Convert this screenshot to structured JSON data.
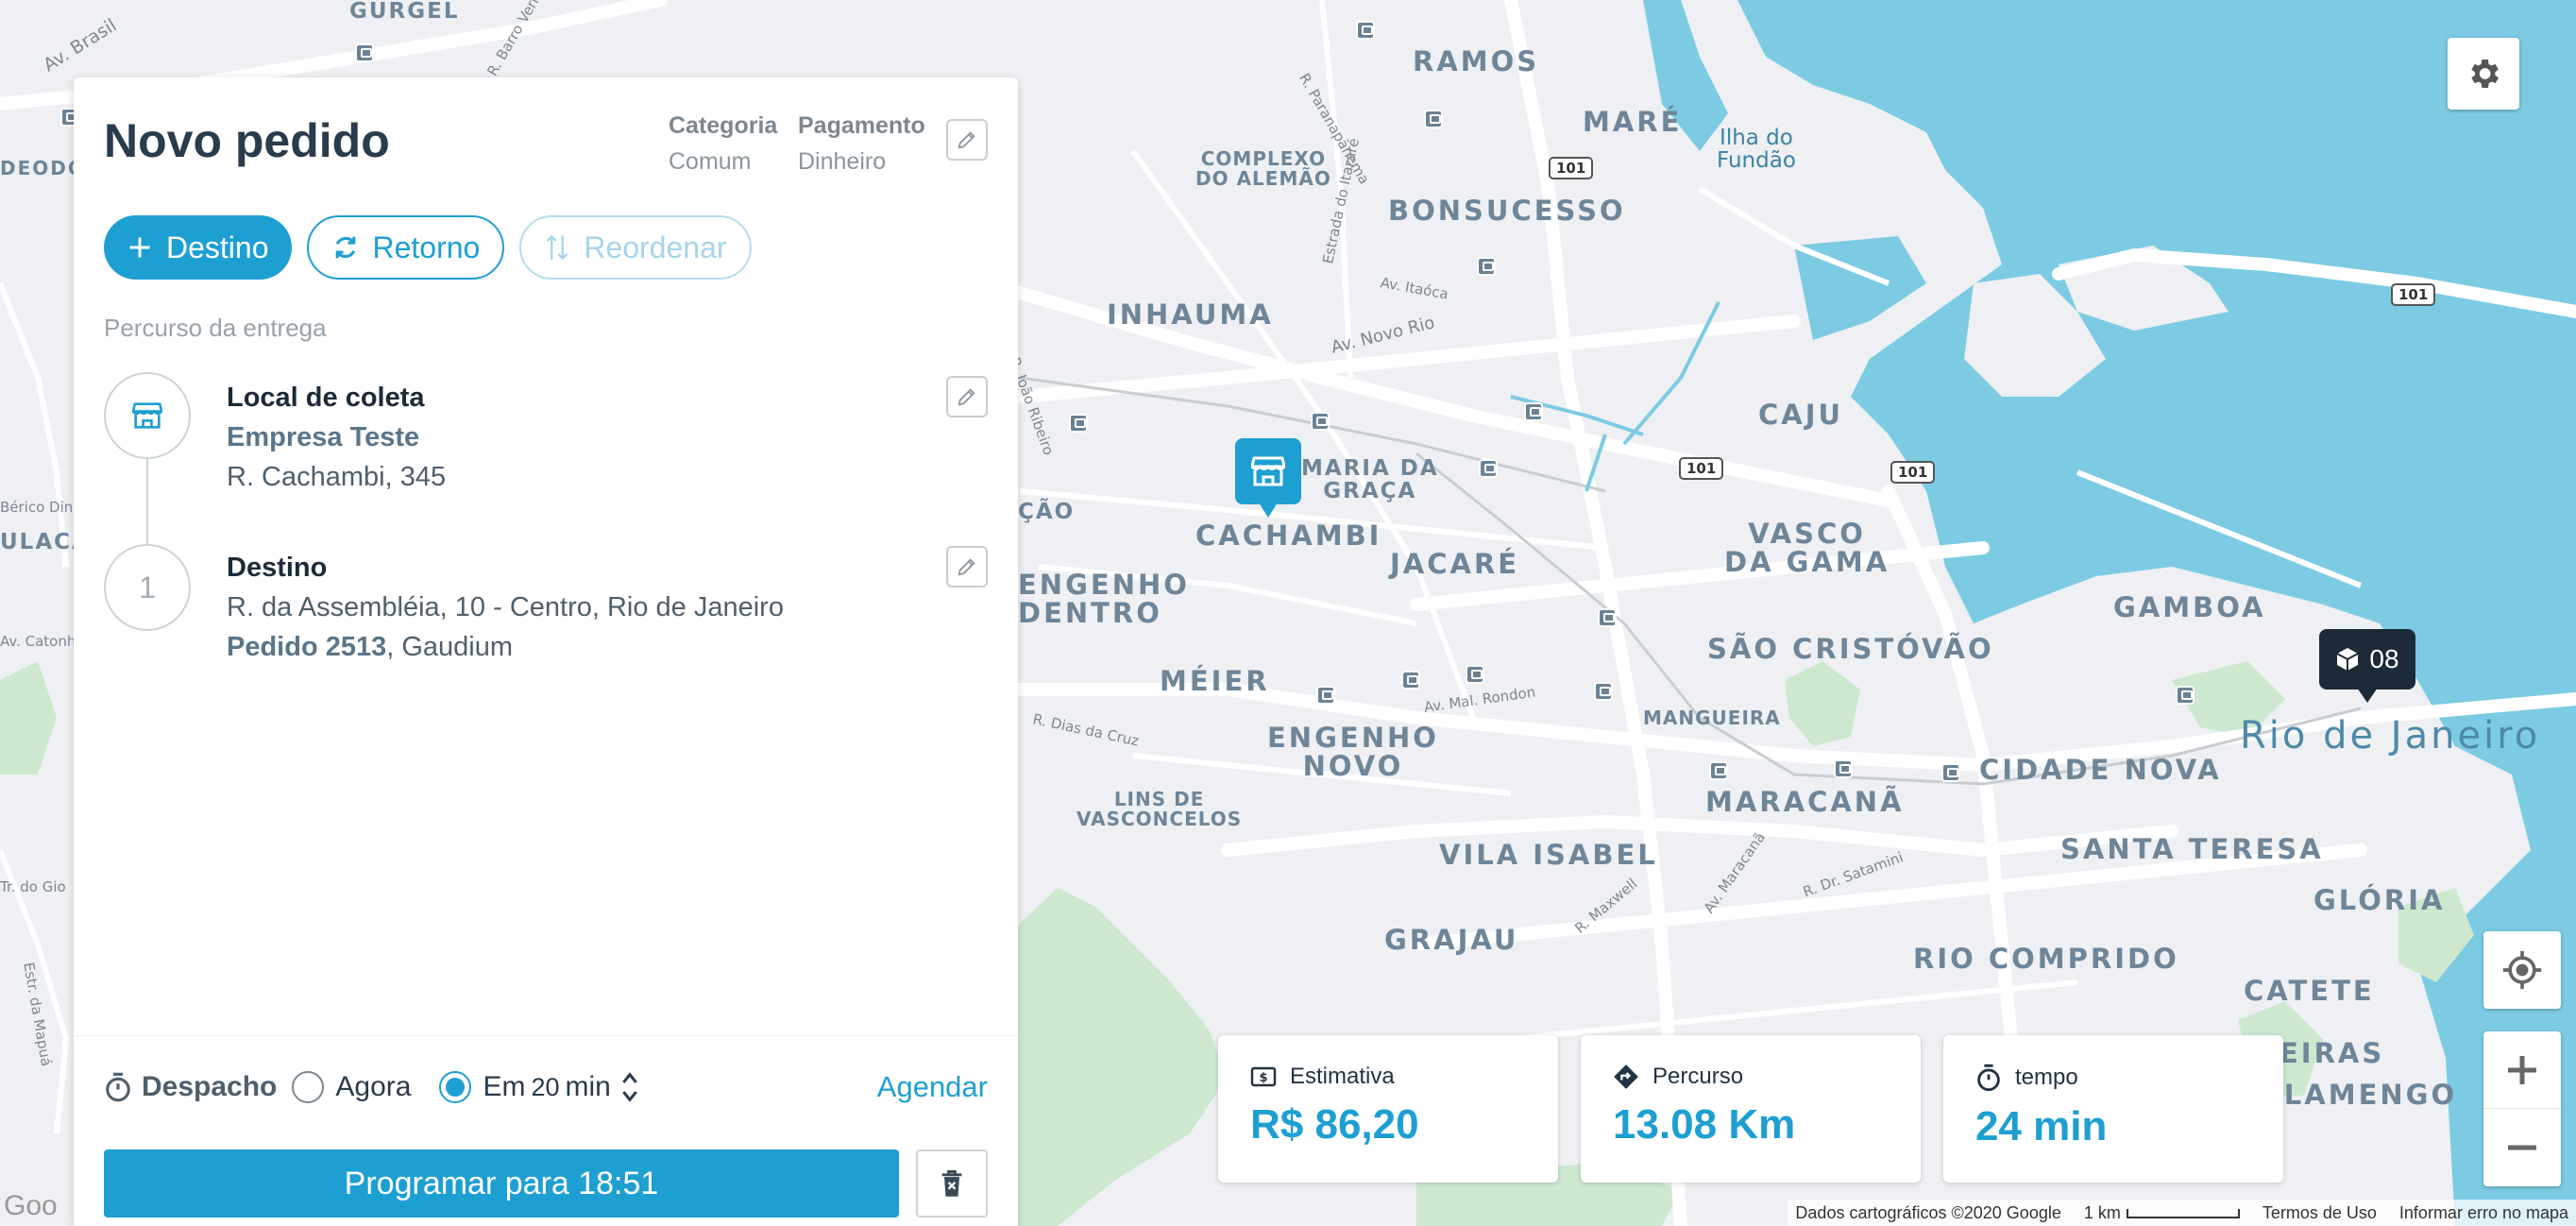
{
  "panel": {
    "title": "Novo pedido",
    "category": {
      "label": "Categoria",
      "value": "Comum"
    },
    "payment": {
      "label": "Pagamento",
      "value": "Dinheiro"
    },
    "buttons": {
      "destino": "Destino",
      "retorno": "Retorno",
      "reordenar": "Reordenar"
    },
    "route_label": "Percurso da entrega",
    "pickup": {
      "title": "Local de coleta",
      "company": "Empresa Teste",
      "address": "R. Cachambi, 345"
    },
    "destination": {
      "index": "1",
      "title": "Destino",
      "address": "R. da Assembléia, 10 - Centro, Rio de Janeiro",
      "order": "Pedido 2513",
      "client": ", Gaudium"
    },
    "footer": {
      "dispatch_label": "Despacho",
      "now_label": "Agora",
      "in_label": "Em",
      "minutes": "20",
      "min_unit": "min",
      "schedule_link": "Agendar",
      "schedule_button": "Programar para 18:51",
      "selected_option": "Em"
    }
  },
  "stats": [
    {
      "label": "Estimativa",
      "value": "R$ 86,20",
      "icon": "money-icon"
    },
    {
      "label": "Percurso",
      "value": "13.08 Km",
      "icon": "route-diamond-icon"
    },
    {
      "label": "tempo",
      "value": "24 min",
      "icon": "stopwatch-icon"
    }
  ],
  "map": {
    "dest_marker": "08",
    "neighborhoods": [
      "GURGEL",
      "RAMOS",
      "MARÉ",
      "BONSUCESSO",
      "INHAUMA",
      "CAJU",
      "MARIA DA\nGRAÇA",
      "CACHAMBI",
      "JACARÉ",
      "VASCO\nDA GAMA",
      "GAMBOA",
      "ENGENHO\nDENTRO",
      "MÉIER",
      "SÃO CRISTÓVÃO",
      "ENGENHO\nNOVO",
      "CIDADE NOVA",
      "MARACANÃ",
      "VILA ISABEL",
      "SANTA TERESA",
      "GLÓRIA",
      "GRAJAU",
      "RIO COMPRIDO",
      "CATETE",
      "EIRAS",
      "FLAMENGO",
      "ÇÃO",
      "ULACA"
    ],
    "small_areas": [
      "COMPLEXO\nDO ALEMÃO",
      "LINS DE\nVASCONCELOS",
      "MANGUEIRA",
      "Ilha do\nFundão"
    ],
    "city": "Rio de Janeiro",
    "streets": [
      "Av. Brasil",
      "R. Barro Vermelho",
      "R. Paranapanema",
      "Estrada do Itararé",
      "Av. Itaóca",
      "Av. Novo Rio",
      "R. João Ribeiro",
      "R. Dias da Cruz",
      "Av. Mal. Rondon",
      "R. Dr. Satamini",
      "R. Maxwell",
      "Av. Maracanã",
      "Estr. da Mapuá",
      "Av. Catonho",
      "Tr. do Gio",
      "Bérico Dini",
      "DEODO"
    ],
    "highways": [
      "101",
      "101",
      "101",
      "101"
    ],
    "attribution": {
      "data": "Dados cartográficos ©2020 Google",
      "scale": "1 km",
      "terms": "Termos de Uso",
      "report": "Informar erro no mapa"
    },
    "google": "Goo"
  }
}
